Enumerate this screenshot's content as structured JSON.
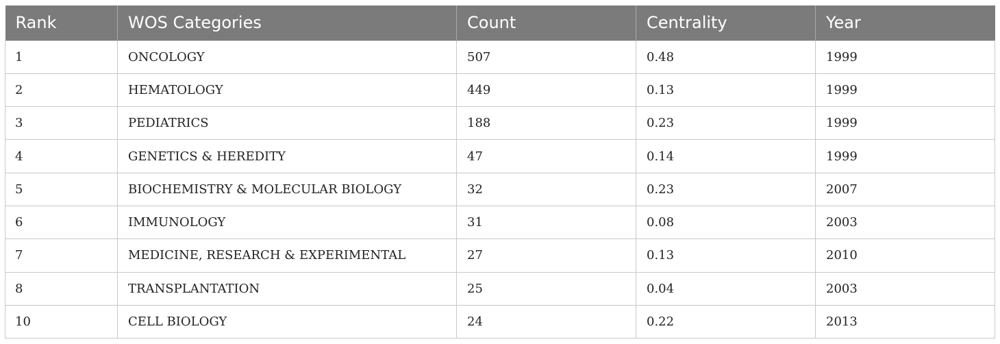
{
  "table": {
    "headers": [
      "Rank",
      "WOS Categories",
      "Count",
      "Centrality",
      "Year"
    ],
    "rows": [
      {
        "rank": "1",
        "category": "ONCOLOGY",
        "count": "507",
        "centrality": "0.48",
        "year": "1999"
      },
      {
        "rank": "2",
        "category": "HEMATOLOGY",
        "count": "449",
        "centrality": "0.13",
        "year": "1999"
      },
      {
        "rank": "3",
        "category": "PEDIATRICS",
        "count": "188",
        "centrality": "0.23",
        "year": "1999"
      },
      {
        "rank": "4",
        "category": "GENETICS & HEREDITY",
        "count": "47",
        "centrality": "0.14",
        "year": "1999"
      },
      {
        "rank": "5",
        "category": "BIOCHEMISTRY & MOLECULAR BIOLOGY",
        "count": "32",
        "centrality": "0.23",
        "year": "2007"
      },
      {
        "rank": "6",
        "category": "IMMUNOLOGY",
        "count": "31",
        "centrality": "0.08",
        "year": "2003"
      },
      {
        "rank": "7",
        "category": "MEDICINE, RESEARCH & EXPERIMENTAL",
        "count": "27",
        "centrality": "0.13",
        "year": "2010"
      },
      {
        "rank": "8",
        "category": "TRANSPLANTATION",
        "count": "25",
        "centrality": "0.04",
        "year": "2003"
      },
      {
        "rank": "10",
        "category": "CELL BIOLOGY",
        "count": "24",
        "centrality": "0.22",
        "year": "2013"
      }
    ]
  }
}
